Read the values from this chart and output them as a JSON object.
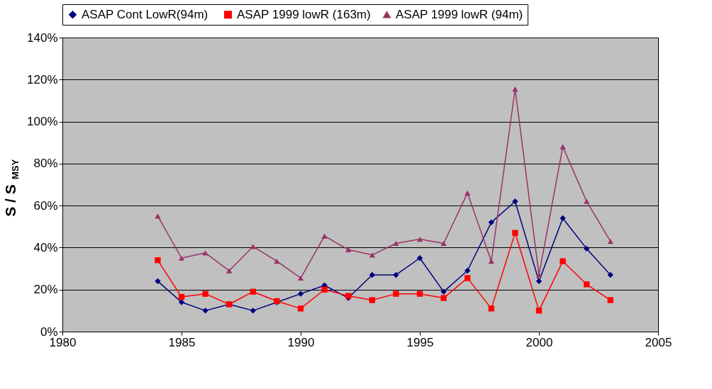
{
  "chart_data": {
    "type": "line",
    "ylabel": "S / S$_{MSY}$",
    "x": [
      1984,
      1985,
      1986,
      1987,
      1988,
      1989,
      1990,
      1991,
      1992,
      1993,
      1994,
      1995,
      1996,
      1997,
      1998,
      1999,
      2000,
      2001,
      2002,
      2003
    ],
    "series": [
      {
        "name": "ASAP Cont  LowR(94m)",
        "color": "#000080",
        "marker": "diamond",
        "values": [
          24,
          14,
          10,
          13,
          10,
          14,
          18,
          22,
          16,
          27,
          27,
          35,
          19,
          29,
          52,
          62,
          24,
          54,
          39.5,
          27
        ]
      },
      {
        "name": "ASAP 1999 lowR (163m)",
        "color": "#ff0000",
        "marker": "square",
        "values": [
          34,
          16.5,
          18,
          13,
          19,
          14.5,
          11,
          20,
          17,
          15,
          18,
          18,
          16,
          25.5,
          11,
          47,
          10,
          33.5,
          22.5,
          15
        ]
      },
      {
        "name": "ASAP 1999 lowR (94m)",
        "color": "#993366",
        "marker": "triangle",
        "values": [
          55,
          35,
          37.5,
          29,
          40.5,
          33.5,
          25.5,
          45.5,
          39,
          36.5,
          42,
          44,
          42,
          66,
          33.5,
          115.5,
          27,
          88,
          62,
          43
        ]
      }
    ],
    "xlim": [
      1980,
      2005
    ],
    "xticks": [
      1980,
      1985,
      1990,
      1995,
      2000,
      2005
    ],
    "ylim": [
      0,
      140
    ],
    "yticks": [
      {
        "value": 0,
        "label": "0%"
      },
      {
        "value": 20,
        "label": "20%"
      },
      {
        "value": 40,
        "label": "40%"
      },
      {
        "value": 60,
        "label": "60%"
      },
      {
        "value": 80,
        "label": "80%"
      },
      {
        "value": 100,
        "label": "100%"
      },
      {
        "value": 120,
        "label": "120%"
      },
      {
        "value": 140,
        "label": "140%"
      }
    ],
    "grid": "y",
    "legend": "top",
    "line_style": "solid"
  }
}
